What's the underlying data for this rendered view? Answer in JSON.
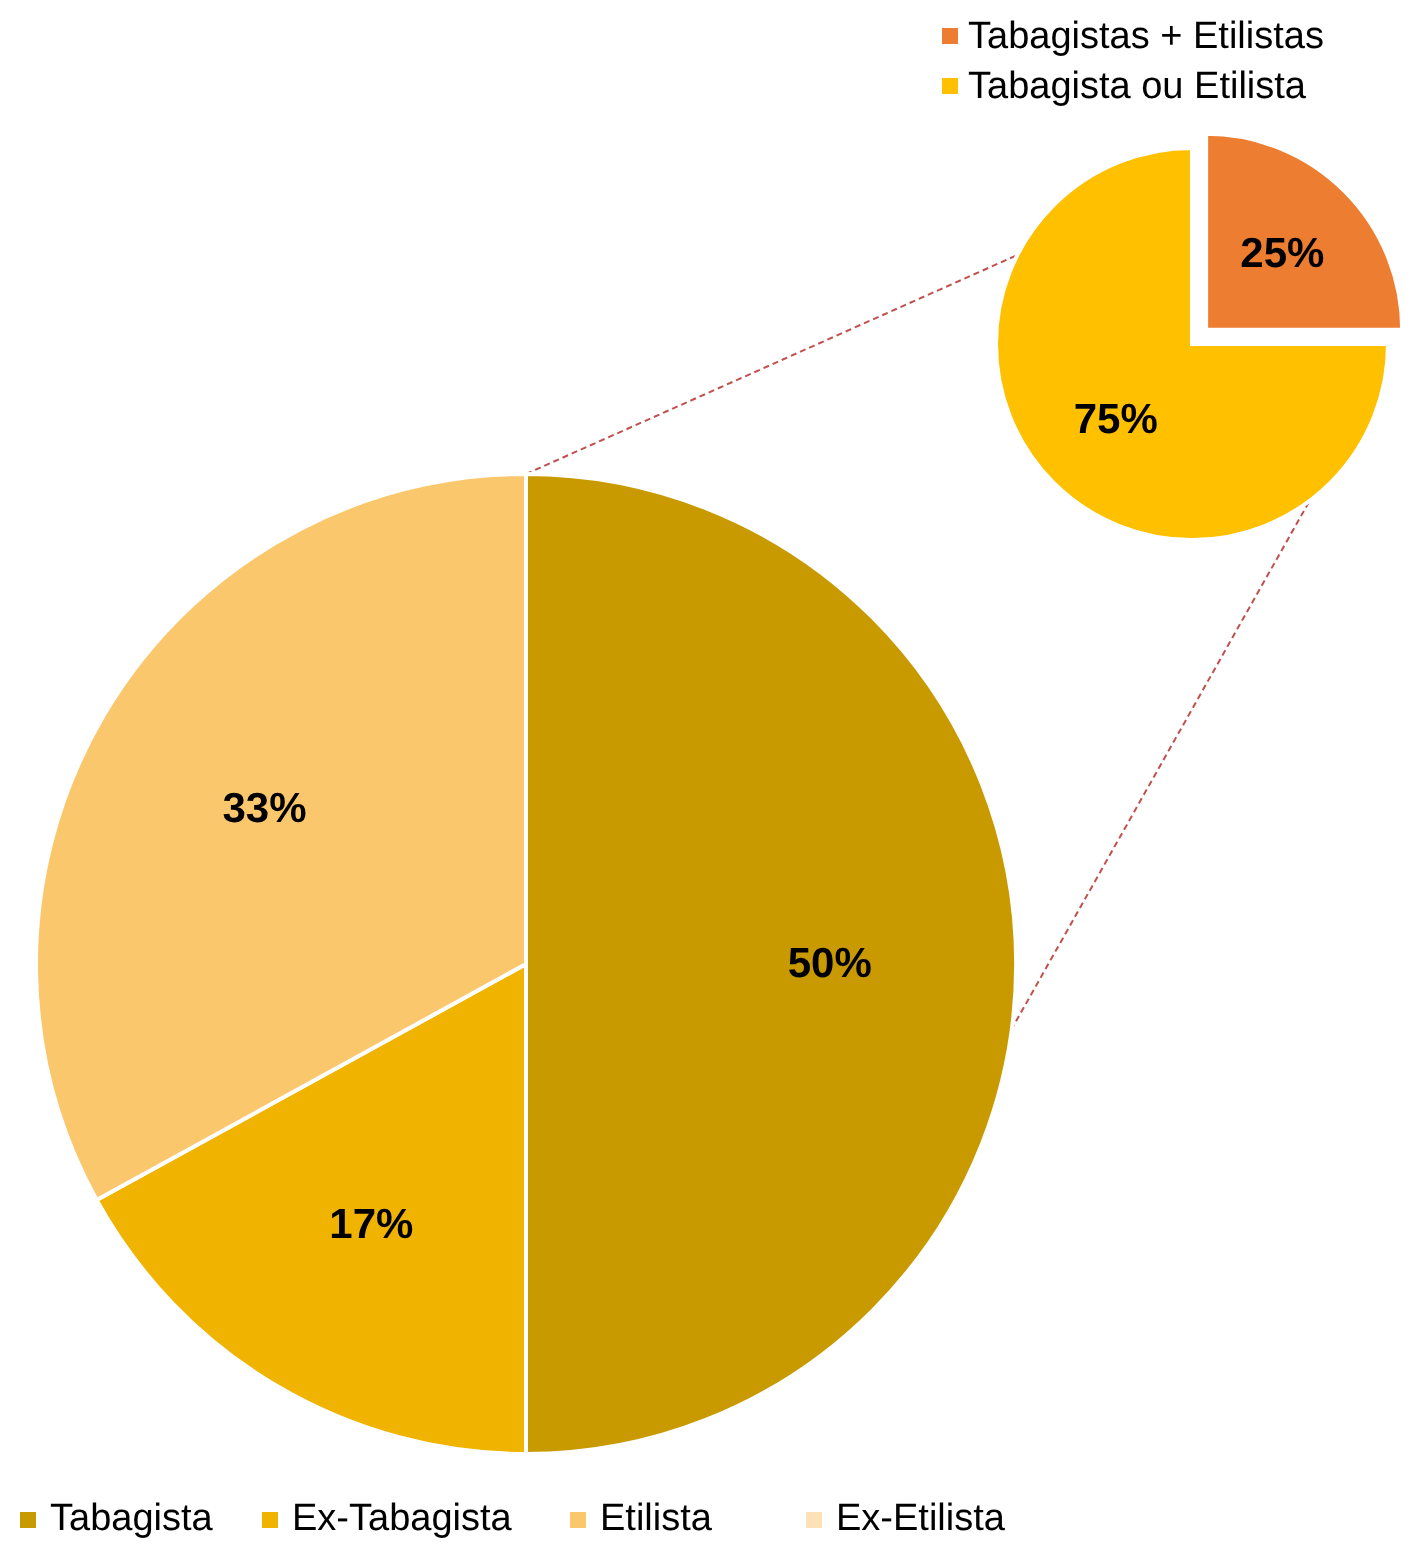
{
  "chart_data": [
    {
      "type": "pie",
      "categories": [
        "Tabagista",
        "Ex-Tabagista",
        "Etilista",
        "Ex-Etilista"
      ],
      "values": [
        50,
        17,
        33,
        0
      ],
      "colors": [
        "#c89a00",
        "#f0b400",
        "#fbc76c",
        "#fde2b8"
      ],
      "value_labels": [
        "50%",
        "17%",
        "33%",
        null
      ],
      "legend": "bottom"
    },
    {
      "type": "pie",
      "categories": [
        "Tabagistas + Etilistas",
        "Tabagista ou Etilista"
      ],
      "values": [
        25,
        75
      ],
      "colors": [
        "#ed7d31",
        "#ffc000"
      ],
      "value_labels": [
        "25%",
        "75%"
      ],
      "legend": "top"
    }
  ]
}
